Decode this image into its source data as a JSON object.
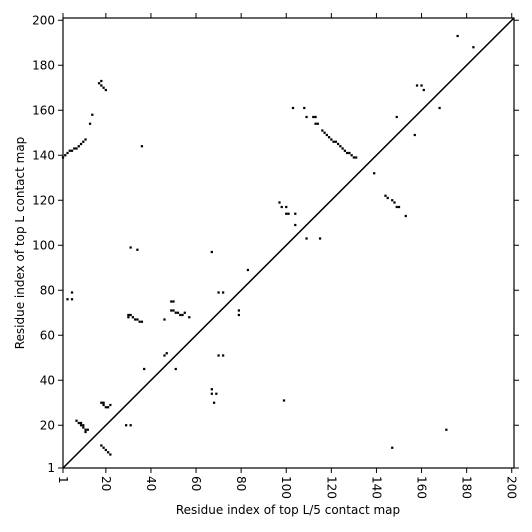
{
  "chart_data": {
    "type": "scatter",
    "xlabel": "Residue index of top L/5 contact map",
    "ylabel": "Residue index of top L contact map",
    "xlim": [
      1,
      201
    ],
    "ylim": [
      1,
      201
    ],
    "xticks": [
      1,
      20,
      40,
      60,
      80,
      100,
      120,
      140,
      160,
      180,
      200
    ],
    "yticks": [
      1,
      20,
      40,
      60,
      80,
      100,
      120,
      140,
      160,
      180,
      200
    ],
    "color": "#000000",
    "diagonal": true,
    "grid": false,
    "x": [
      1,
      2,
      3,
      4,
      5,
      6,
      7,
      8,
      9,
      10,
      11,
      17,
      18,
      18,
      19,
      20,
      13,
      14,
      36,
      103,
      108,
      109,
      112,
      113,
      114,
      113,
      116,
      117,
      118,
      119,
      120,
      121,
      122,
      123,
      124,
      125,
      126,
      127,
      128,
      129,
      130,
      131,
      158,
      160,
      161,
      176,
      183,
      168,
      157,
      149,
      139,
      144,
      145,
      147,
      148,
      149,
      150,
      153,
      97,
      98,
      100,
      100,
      101,
      104,
      104,
      109,
      115,
      83,
      67,
      31,
      34,
      3,
      5,
      5,
      49,
      50,
      49,
      50,
      51,
      52,
      53,
      54,
      55,
      57,
      30,
      31,
      32,
      33,
      34,
      35,
      36,
      30,
      46,
      70,
      72,
      79,
      79,
      70,
      72,
      46,
      47,
      37,
      51,
      67,
      67,
      69,
      68,
      99,
      7,
      8,
      9,
      9,
      10,
      10,
      11,
      11,
      12,
      18,
      19,
      19,
      20,
      21,
      22,
      29,
      31,
      18,
      19,
      20,
      21,
      22,
      147,
      171
    ],
    "values": [
      139,
      140,
      141,
      142,
      142,
      143,
      143,
      144,
      145,
      146,
      147,
      172,
      171,
      173,
      170,
      169,
      154,
      158,
      144,
      161,
      161,
      157,
      157,
      157,
      154,
      154,
      151,
      150,
      149,
      148,
      147,
      146,
      146,
      145,
      144,
      143,
      142,
      141,
      141,
      140,
      139,
      139,
      171,
      171,
      169,
      193,
      188,
      161,
      149,
      157,
      132,
      122,
      121,
      120,
      119,
      117,
      117,
      113,
      119,
      117,
      117,
      114,
      114,
      114,
      109,
      103,
      103,
      89,
      97,
      99,
      98,
      76,
      79,
      76,
      75,
      75,
      71,
      71,
      70,
      70,
      69,
      69,
      70,
      68,
      69,
      69,
      68,
      67,
      67,
      66,
      66,
      68,
      67,
      79,
      79,
      71,
      69,
      51,
      51,
      51,
      52,
      45,
      45,
      36,
      34,
      34,
      30,
      31,
      22,
      21,
      21,
      20,
      20,
      19,
      18,
      17,
      18,
      30,
      30,
      29,
      28,
      28,
      29,
      20,
      20,
      11,
      10,
      9,
      8,
      7,
      10,
      18
    ]
  }
}
